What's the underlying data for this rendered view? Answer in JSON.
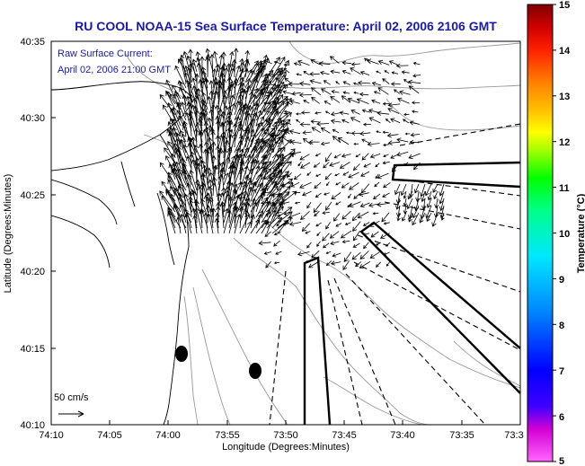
{
  "title": "RU COOL  NOAA-15  Sea Surface Temperature:  April 02, 2006 2106 GMT",
  "legend": {
    "line1": "Raw Surface Current:",
    "line2": "April 02, 2006 21:00 GMT"
  },
  "scale_label": "50 cm/s",
  "x_axis": {
    "label": "Longitude (Degrees:Minutes)",
    "ticks": [
      "74:10",
      "74:05",
      "74:00",
      "73:55",
      "73:50",
      "73:45",
      "73:40",
      "73:35",
      "73:3"
    ]
  },
  "y_axis": {
    "label": "Latitude (Degrees:Minutes)",
    "ticks": [
      "40:35",
      "40:30",
      "40:25",
      "40:20",
      "40:15",
      "40:10"
    ]
  },
  "colorbar": {
    "label": "Temperature (°C)",
    "ticks": [
      "15",
      "14",
      "13",
      "12",
      "11",
      "10",
      "9",
      "8",
      "7",
      "6",
      "5"
    ],
    "range": [
      5,
      15
    ],
    "colors": [
      "#ff66ff",
      "#d400d4",
      "#4000ff",
      "#0000ff",
      "#0088ff",
      "#00e8ff",
      "#00ff88",
      "#00ff00",
      "#a0ff00",
      "#ffff00",
      "#ffbf00",
      "#ff8000",
      "#ff2000",
      "#d00000",
      "#800000"
    ]
  },
  "colors": {
    "title": "#1a1aa6",
    "land_outline": "#000000",
    "isobath": "#999999",
    "vectors": "#000000"
  }
}
